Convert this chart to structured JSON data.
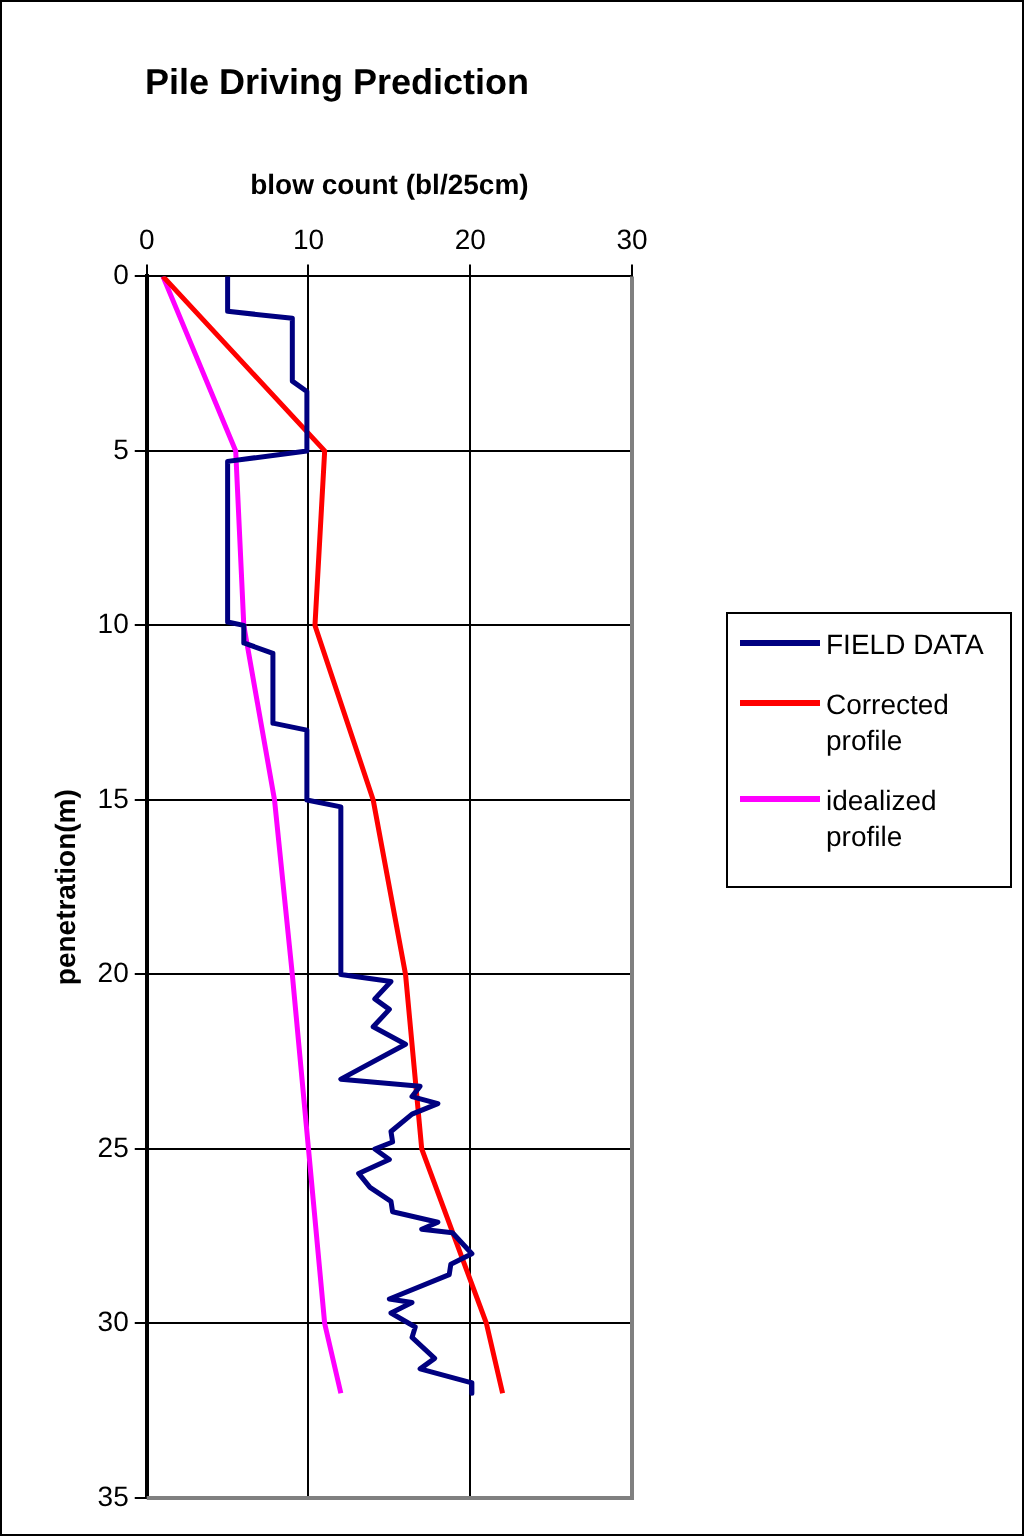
{
  "chart_data": {
    "type": "line",
    "title": "Pile Driving Prediction",
    "xlabel": "blow count (bl/25cm)",
    "ylabel": "penetration(m)",
    "xlim": [
      0,
      30
    ],
    "xticks": [
      0,
      10,
      20,
      30
    ],
    "ylim": [
      35,
      0
    ],
    "yticks": [
      0,
      5,
      10,
      15,
      20,
      25,
      30,
      35
    ],
    "grid": true,
    "legend": "right",
    "marker": "none",
    "line_style": "solid",
    "series": [
      {
        "name": "FIELD DATA",
        "color": "#000080",
        "x": [
          5,
          5,
          9,
          9,
          9.9,
          9.9,
          5,
          5,
          6,
          6,
          7.8,
          7.8,
          9.9,
          9.9,
          12,
          12,
          15.1,
          14.1,
          15,
          14,
          16,
          12,
          16.9,
          16.4,
          18,
          16.4,
          15.1,
          15.2,
          14.1,
          15,
          13.1,
          13.8,
          15.1,
          15.2,
          18,
          17,
          18.9,
          20.1,
          18.8,
          18.7,
          15,
          16.4,
          15.1,
          16.6,
          16.4,
          17.8,
          16.9,
          20.1,
          20.1
        ],
        "values": [
          0,
          1,
          1.2,
          3,
          3.3,
          5,
          5.3,
          9.9,
          10,
          10.5,
          10.8,
          12.8,
          13,
          15,
          15.2,
          20,
          20.2,
          20.7,
          21,
          21.5,
          22,
          23,
          23.2,
          23.5,
          23.7,
          24,
          24.5,
          24.8,
          25,
          25.3,
          25.7,
          26.1,
          26.5,
          26.8,
          27.1,
          27.3,
          27.4,
          28,
          28.3,
          28.6,
          29.3,
          29.4,
          29.7,
          30.1,
          30.4,
          31,
          31.3,
          31.7,
          32
        ]
      },
      {
        "name": "Corrected profile",
        "color": "#ff0000",
        "x": [
          1,
          11,
          10.4,
          14,
          16,
          17,
          21,
          22
        ],
        "values": [
          0,
          5,
          10,
          15,
          20,
          25,
          30,
          32
        ]
      },
      {
        "name": "idealized profile",
        "color": "#ff00ff",
        "x": [
          1,
          5.5,
          6,
          7.9,
          9,
          10,
          11,
          12
        ],
        "values": [
          0,
          5,
          10,
          15,
          20,
          25,
          30,
          32
        ]
      }
    ]
  }
}
